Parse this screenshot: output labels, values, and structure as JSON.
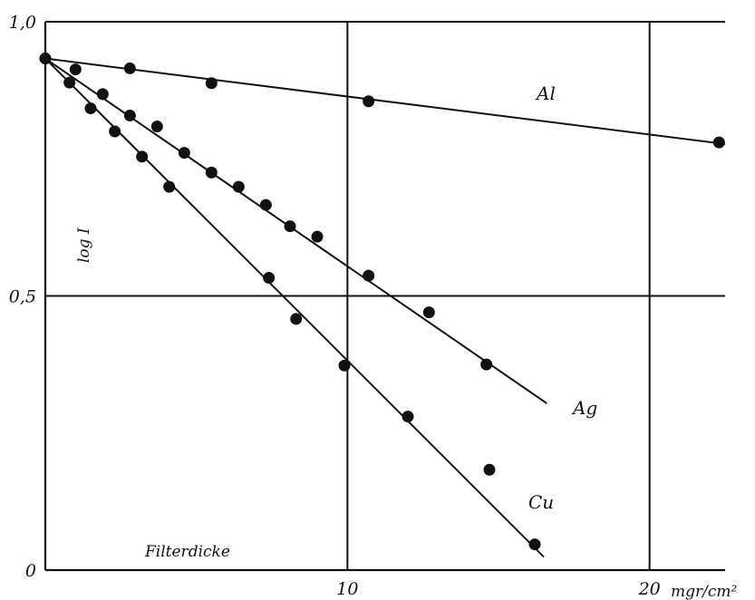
{
  "chart_data": {
    "type": "scatter",
    "title": "",
    "xlabel": "Filterdicke",
    "ylabel": "log I",
    "x_unit": "mgr/cm²",
    "xlim": [
      0,
      22.5
    ],
    "ylim": [
      0,
      1.0
    ],
    "x_ticks": [
      {
        "value": 10,
        "label": "10"
      },
      {
        "value": 20,
        "label": "20"
      }
    ],
    "y_ticks": [
      {
        "value": 0,
        "label": "0"
      },
      {
        "value": 0.5,
        "label": "0,5"
      },
      {
        "value": 1.0,
        "label": "1,0"
      }
    ],
    "grid": true,
    "colors": {
      "ink": "#111111",
      "background": "#ffffff"
    },
    "series": [
      {
        "name": "Al",
        "fit_line": {
          "x0": 0,
          "y0": 0.933,
          "x1": 22.5,
          "y1": 0.777
        },
        "points": [
          {
            "x": 0.0,
            "y": 0.933
          },
          {
            "x": 1.0,
            "y": 0.913
          },
          {
            "x": 2.8,
            "y": 0.915
          },
          {
            "x": 5.5,
            "y": 0.888
          },
          {
            "x": 10.7,
            "y": 0.855
          },
          {
            "x": 22.3,
            "y": 0.78
          }
        ]
      },
      {
        "name": "Ag",
        "fit_line": {
          "x0": 0,
          "y0": 0.933,
          "x1": 16.6,
          "y1": 0.304
        },
        "points": [
          {
            "x": 1.9,
            "y": 0.868
          },
          {
            "x": 2.8,
            "y": 0.829
          },
          {
            "x": 3.7,
            "y": 0.809
          },
          {
            "x": 4.6,
            "y": 0.761
          },
          {
            "x": 5.5,
            "y": 0.725
          },
          {
            "x": 6.4,
            "y": 0.699
          },
          {
            "x": 7.3,
            "y": 0.666
          },
          {
            "x": 8.1,
            "y": 0.627
          },
          {
            "x": 9.0,
            "y": 0.608
          },
          {
            "x": 10.7,
            "y": 0.537
          },
          {
            "x": 12.7,
            "y": 0.47
          },
          {
            "x": 14.6,
            "y": 0.375
          }
        ]
      },
      {
        "name": "Cu",
        "fit_line": {
          "x0": 0,
          "y0": 0.933,
          "x1": 16.5,
          "y1": 0.024
        },
        "points": [
          {
            "x": 0.0,
            "y": 0.933
          },
          {
            "x": 0.8,
            "y": 0.889
          },
          {
            "x": 1.5,
            "y": 0.842
          },
          {
            "x": 2.3,
            "y": 0.8
          },
          {
            "x": 3.2,
            "y": 0.754
          },
          {
            "x": 4.1,
            "y": 0.699
          },
          {
            "x": 7.4,
            "y": 0.533
          },
          {
            "x": 8.3,
            "y": 0.458
          },
          {
            "x": 9.9,
            "y": 0.373
          },
          {
            "x": 12.0,
            "y": 0.28
          },
          {
            "x": 14.7,
            "y": 0.183
          },
          {
            "x": 16.2,
            "y": 0.047
          }
        ]
      }
    ]
  }
}
